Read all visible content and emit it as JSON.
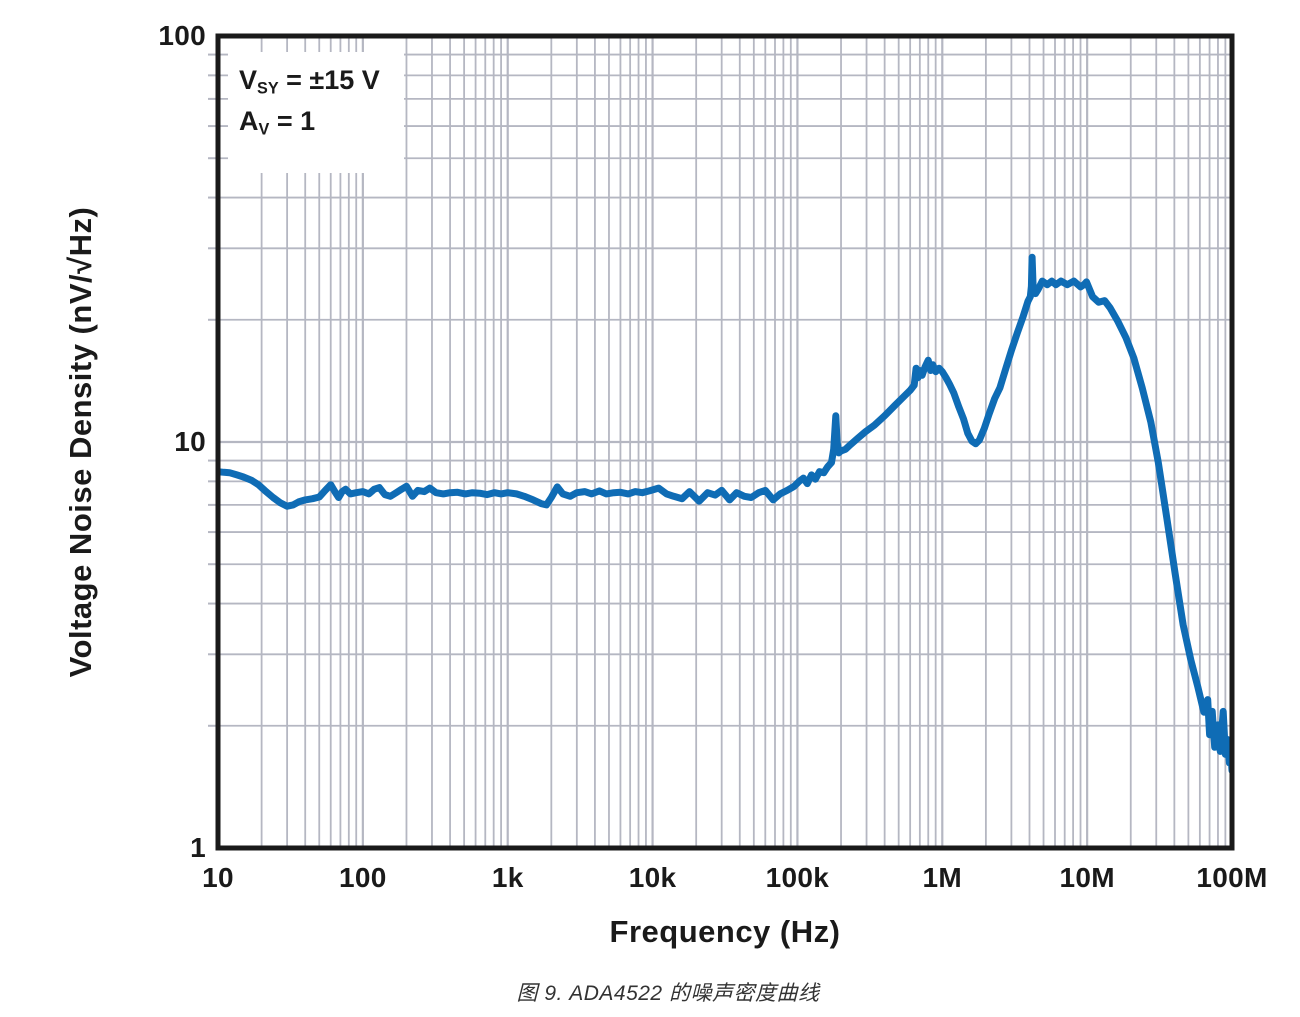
{
  "figure": {
    "caption": "图 9. ADA4522 的噪声密度曲线"
  },
  "annotation": {
    "line1": {
      "base": "V",
      "sub": "SY",
      "rest": " = ±15 V"
    },
    "line2": {
      "base": "A",
      "sub": "V",
      "rest": " = 1"
    }
  },
  "colors": {
    "curve": "#0f6cb5",
    "grid": "#b5b7c2",
    "axis": "#1a1a1a",
    "background": "#ffffff"
  },
  "chart_data": {
    "type": "line",
    "title": "",
    "xlabel": "Frequency (Hz)",
    "ylabel": "Voltage Noise Density (nV/√Hz)",
    "x_axis": {
      "scale": "log",
      "min": 10,
      "max": 100000000,
      "tick_values": [
        10,
        100,
        1000,
        10000,
        100000,
        1000000,
        10000000,
        100000000
      ],
      "tick_labels": [
        "10",
        "100",
        "1k",
        "10k",
        "100k",
        "1M",
        "10M",
        "100M"
      ]
    },
    "y_axis": {
      "scale": "log",
      "min": 1,
      "max": 100,
      "tick_values": [
        1,
        10,
        100
      ],
      "tick_labels": [
        "1",
        "10",
        "100"
      ]
    },
    "grid": {
      "major": true,
      "minor": true,
      "legend": "none"
    },
    "annotations": [
      "V_SY = ±15 V",
      "A_V = 1"
    ],
    "series": [
      {
        "name": "ADA4522 voltage noise density",
        "color": "#0f6cb5",
        "points": [
          [
            10,
            8.45
          ],
          [
            11,
            8.42
          ],
          [
            12,
            8.4
          ],
          [
            13.5,
            8.3
          ],
          [
            15,
            8.2
          ],
          [
            17,
            8.05
          ],
          [
            19,
            7.85
          ],
          [
            21,
            7.6
          ],
          [
            24,
            7.3
          ],
          [
            27,
            7.08
          ],
          [
            30,
            6.95
          ],
          [
            33,
            7.0
          ],
          [
            36,
            7.12
          ],
          [
            40,
            7.2
          ],
          [
            45,
            7.25
          ],
          [
            50,
            7.32
          ],
          [
            55,
            7.6
          ],
          [
            60,
            7.85
          ],
          [
            64,
            7.55
          ],
          [
            68,
            7.3
          ],
          [
            72,
            7.55
          ],
          [
            76,
            7.65
          ],
          [
            82,
            7.45
          ],
          [
            90,
            7.5
          ],
          [
            100,
            7.55
          ],
          [
            110,
            7.45
          ],
          [
            120,
            7.65
          ],
          [
            130,
            7.72
          ],
          [
            142,
            7.42
          ],
          [
            155,
            7.35
          ],
          [
            170,
            7.5
          ],
          [
            185,
            7.65
          ],
          [
            200,
            7.78
          ],
          [
            220,
            7.35
          ],
          [
            240,
            7.6
          ],
          [
            265,
            7.55
          ],
          [
            290,
            7.7
          ],
          [
            320,
            7.5
          ],
          [
            360,
            7.45
          ],
          [
            400,
            7.5
          ],
          [
            450,
            7.52
          ],
          [
            510,
            7.45
          ],
          [
            570,
            7.5
          ],
          [
            640,
            7.48
          ],
          [
            720,
            7.42
          ],
          [
            810,
            7.5
          ],
          [
            900,
            7.45
          ],
          [
            1000,
            7.5
          ],
          [
            1150,
            7.45
          ],
          [
            1300,
            7.35
          ],
          [
            1500,
            7.2
          ],
          [
            1700,
            7.05
          ],
          [
            1850,
            7.0
          ],
          [
            2000,
            7.3
          ],
          [
            2200,
            7.75
          ],
          [
            2400,
            7.45
          ],
          [
            2700,
            7.35
          ],
          [
            3000,
            7.5
          ],
          [
            3400,
            7.55
          ],
          [
            3800,
            7.45
          ],
          [
            4300,
            7.58
          ],
          [
            4800,
            7.45
          ],
          [
            5400,
            7.5
          ],
          [
            6000,
            7.52
          ],
          [
            6800,
            7.45
          ],
          [
            7600,
            7.55
          ],
          [
            8500,
            7.5
          ],
          [
            9500,
            7.58
          ],
          [
            11000,
            7.7
          ],
          [
            12500,
            7.45
          ],
          [
            14000,
            7.35
          ],
          [
            16000,
            7.25
          ],
          [
            18000,
            7.55
          ],
          [
            21000,
            7.15
          ],
          [
            24000,
            7.5
          ],
          [
            27000,
            7.4
          ],
          [
            30000,
            7.6
          ],
          [
            34000,
            7.2
          ],
          [
            38000,
            7.5
          ],
          [
            43000,
            7.35
          ],
          [
            48000,
            7.3
          ],
          [
            54000,
            7.5
          ],
          [
            60000,
            7.6
          ],
          [
            68000,
            7.2
          ],
          [
            76000,
            7.45
          ],
          [
            85000,
            7.6
          ],
          [
            95000,
            7.78
          ],
          [
            103000,
            8.0
          ],
          [
            110000,
            8.15
          ],
          [
            117000,
            7.9
          ],
          [
            125000,
            8.3
          ],
          [
            133000,
            8.1
          ],
          [
            142000,
            8.45
          ],
          [
            152000,
            8.4
          ],
          [
            162000,
            8.7
          ],
          [
            172000,
            8.9
          ],
          [
            178000,
            9.6
          ],
          [
            184000,
            11.6
          ],
          [
            188000,
            10.0
          ],
          [
            193000,
            9.4
          ],
          [
            200000,
            9.5
          ],
          [
            215000,
            9.6
          ],
          [
            232000,
            9.85
          ],
          [
            260000,
            10.2
          ],
          [
            295000,
            10.6
          ],
          [
            340000,
            11.0
          ],
          [
            400000,
            11.6
          ],
          [
            470000,
            12.3
          ],
          [
            550000,
            13.0
          ],
          [
            600000,
            13.4
          ],
          [
            640000,
            13.8
          ],
          [
            660000,
            15.2
          ],
          [
            680000,
            14.4
          ],
          [
            700000,
            15.0
          ],
          [
            725000,
            14.6
          ],
          [
            760000,
            15.3
          ],
          [
            800000,
            15.9
          ],
          [
            830000,
            15.0
          ],
          [
            860000,
            15.5
          ],
          [
            900000,
            14.9
          ],
          [
            950000,
            15.2
          ],
          [
            1000000,
            14.9
          ],
          [
            1060000,
            14.4
          ],
          [
            1120000,
            13.9
          ],
          [
            1200000,
            13.2
          ],
          [
            1300000,
            12.2
          ],
          [
            1400000,
            11.4
          ],
          [
            1500000,
            10.5
          ],
          [
            1600000,
            10.05
          ],
          [
            1700000,
            9.9
          ],
          [
            1800000,
            10.1
          ],
          [
            1950000,
            10.8
          ],
          [
            2100000,
            11.7
          ],
          [
            2300000,
            12.8
          ],
          [
            2500000,
            13.6
          ],
          [
            2750000,
            15.2
          ],
          [
            3000000,
            16.8
          ],
          [
            3300000,
            18.6
          ],
          [
            3600000,
            20.3
          ],
          [
            3900000,
            22.2
          ],
          [
            4050000,
            22.8
          ],
          [
            4120000,
            24.2
          ],
          [
            4170000,
            28.5
          ],
          [
            4250000,
            23.4
          ],
          [
            4400000,
            23.2
          ],
          [
            4600000,
            23.8
          ],
          [
            4900000,
            24.9
          ],
          [
            5300000,
            24.4
          ],
          [
            5700000,
            24.9
          ],
          [
            6100000,
            24.4
          ],
          [
            6600000,
            24.9
          ],
          [
            7300000,
            24.4
          ],
          [
            8100000,
            24.9
          ],
          [
            9000000,
            24.1
          ],
          [
            9500000,
            24.4
          ],
          [
            9900000,
            24.8
          ],
          [
            10900000,
            22.8
          ],
          [
            12000000,
            22.1
          ],
          [
            13200000,
            22.3
          ],
          [
            14400000,
            21.4
          ],
          [
            16200000,
            19.9
          ],
          [
            18500000,
            18.1
          ],
          [
            21000000,
            16.1
          ],
          [
            24000000,
            13.6
          ],
          [
            27500000,
            11.2
          ],
          [
            31000000,
            8.9
          ],
          [
            35500000,
            6.5
          ],
          [
            40500000,
            4.75
          ],
          [
            46000000,
            3.55
          ],
          [
            52000000,
            2.9
          ],
          [
            58000000,
            2.5
          ],
          [
            64000000,
            2.16
          ],
          [
            68000000,
            2.32
          ],
          [
            70000000,
            1.9
          ],
          [
            73000000,
            2.17
          ],
          [
            76000000,
            1.77
          ],
          [
            80000000,
            2.01
          ],
          [
            83000000,
            1.73
          ],
          [
            87000000,
            2.17
          ],
          [
            90000000,
            1.7
          ],
          [
            93000000,
            1.85
          ],
          [
            96000000,
            1.62
          ],
          [
            98000000,
            1.75
          ],
          [
            100000000,
            1.55
          ]
        ]
      }
    ]
  }
}
